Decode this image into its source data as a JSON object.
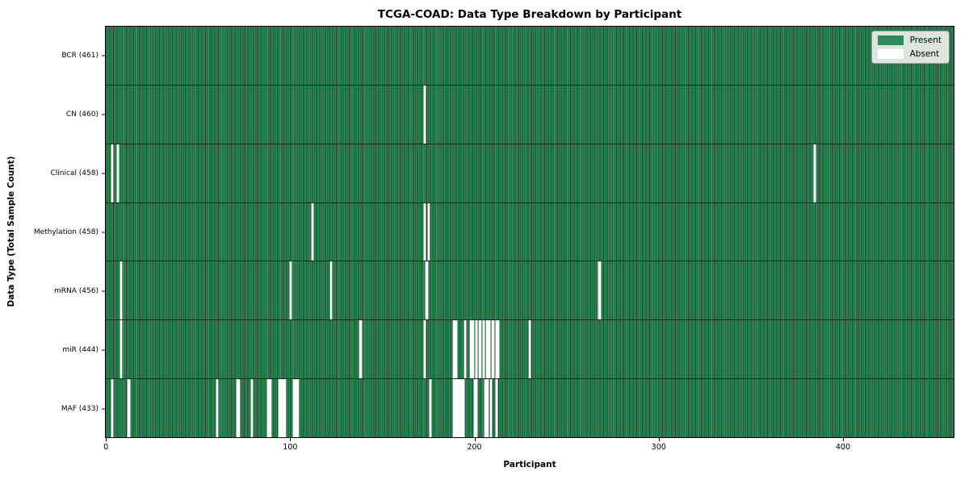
{
  "chart_data": {
    "type": "heatmap",
    "title": "TCGA-COAD: Data Type Breakdown by Participant",
    "xlabel": "Participant",
    "ylabel": "Data Type (Total Sample Count)",
    "n_participants": 461,
    "x_ticks": [
      0,
      100,
      200,
      300,
      400
    ],
    "x_range": [
      0,
      461
    ],
    "grid": false,
    "legend_position": "upper right",
    "legend": [
      {
        "label": "Present",
        "color": "#2e8b57"
      },
      {
        "label": "Absent",
        "color": "#ffffff"
      }
    ],
    "colors": {
      "present": "#2e8b57",
      "bar_edge": "#0b2417",
      "absent": "#ffffff",
      "background": "#ffffff"
    },
    "rows": [
      {
        "name": "BCR",
        "label": "BCR (461)",
        "present_count": 461,
        "absent_participants": []
      },
      {
        "name": "CN",
        "label": "CN (460)",
        "present_count": 460,
        "absent_participants": [
          173
        ]
      },
      {
        "name": "Clinical",
        "label": "Clinical (458)",
        "present_count": 458,
        "absent_participants": [
          3,
          6,
          385
        ]
      },
      {
        "name": "Methylation",
        "label": "Methylation (458)",
        "present_count": 458,
        "absent_participants": [
          112,
          173,
          175
        ]
      },
      {
        "name": "mRNA",
        "label": "mRNA (456)",
        "present_count": 456,
        "absent_participants": [
          8,
          100,
          122,
          174,
          268
        ]
      },
      {
        "name": "miR",
        "label": "miR (444)",
        "present_count": 444,
        "absent_participants": [
          8,
          138,
          173,
          189,
          190,
          195,
          198,
          199,
          201,
          203,
          205,
          207,
          208,
          210,
          212,
          213,
          230
        ]
      },
      {
        "name": "MAF",
        "label": "MAF (433)",
        "present_count": 433,
        "absent_participants": [
          3,
          12,
          60,
          71,
          72,
          79,
          88,
          89,
          94,
          95,
          96,
          97,
          102,
          103,
          104,
          176,
          189,
          190,
          191,
          192,
          193,
          194,
          200,
          201,
          206,
          207,
          209,
          212
        ]
      }
    ]
  }
}
